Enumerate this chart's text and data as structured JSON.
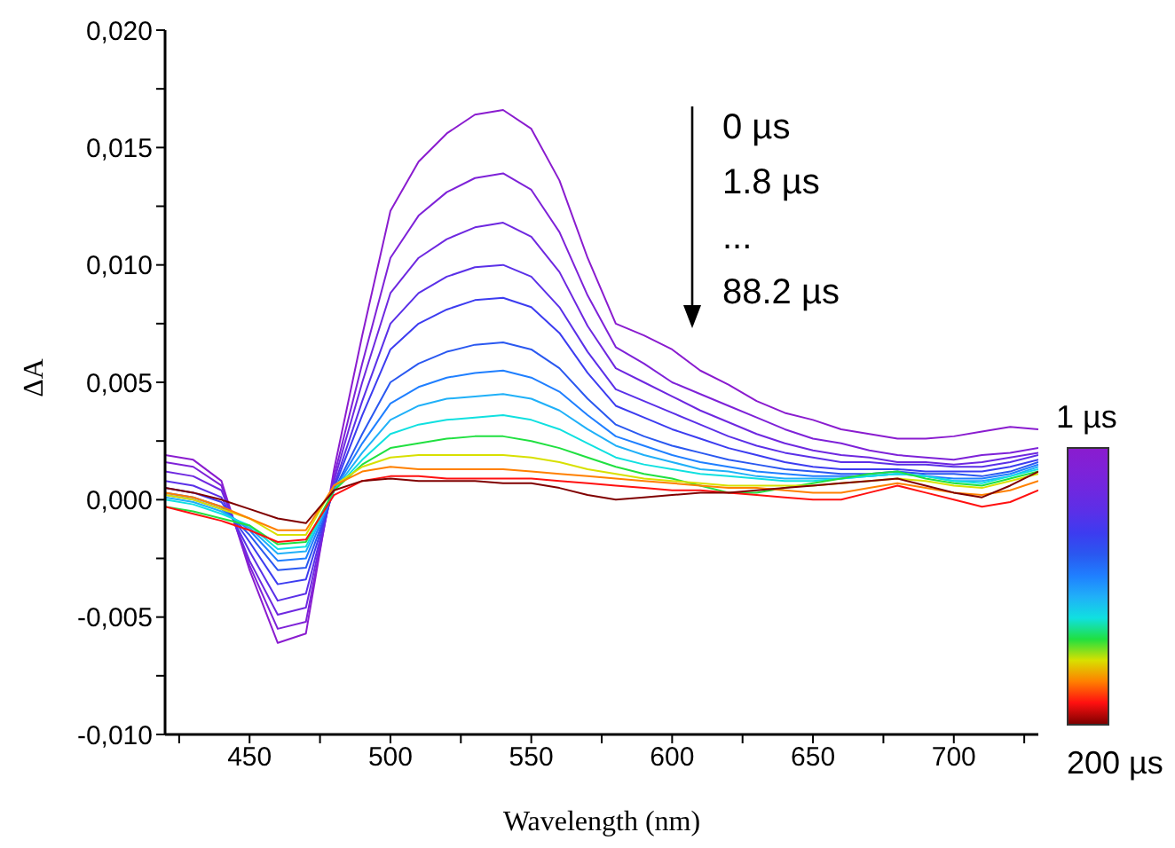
{
  "chart_data": {
    "type": "line",
    "xlabel": "Wavelength (nm)",
    "ylabel": "ΔA",
    "annotations": [
      "0 µs",
      "1.8 µs",
      "...",
      "88.2 µs",
      "1 µs",
      "200 µs"
    ],
    "x": [
      420,
      430,
      440,
      450,
      460,
      470,
      480,
      490,
      500,
      510,
      520,
      530,
      540,
      550,
      560,
      570,
      580,
      590,
      600,
      610,
      620,
      630,
      640,
      650,
      660,
      670,
      680,
      690,
      700,
      710,
      720,
      730
    ],
    "xlim": [
      420,
      730
    ],
    "xticks": [
      {
        "value": 425,
        "label": null
      },
      450,
      {
        "value": 475,
        "label": null
      },
      500,
      {
        "value": 525,
        "label": null
      },
      550,
      {
        "value": 575,
        "label": null
      },
      600,
      {
        "value": 625,
        "label": null
      },
      650,
      {
        "value": 675,
        "label": null
      },
      700,
      {
        "value": 725,
        "label": null
      }
    ],
    "ylim": [
      -0.01,
      0.02
    ],
    "yticks": [
      {
        "value": -0.01,
        "label": "-0,010"
      },
      {
        "value": -0.0075,
        "label": null
      },
      {
        "value": -0.005,
        "label": "-0,005"
      },
      {
        "value": -0.0025,
        "label": null
      },
      {
        "value": 0,
        "label": "0,000"
      },
      {
        "value": 0.0025,
        "label": null
      },
      {
        "value": 0.005,
        "label": "0,005"
      },
      {
        "value": 0.0075,
        "label": null
      },
      {
        "value": 0.01,
        "label": "0,010"
      },
      {
        "value": 0.0125,
        "label": null
      },
      {
        "value": 0.015,
        "label": "0,015"
      },
      {
        "value": 0.0175,
        "label": null
      },
      {
        "value": 0.02,
        "label": "0,020"
      }
    ],
    "series": [
      {
        "color": "#8a1ccf",
        "values": [
          0.0019,
          0.0017,
          0.0008,
          -0.003,
          -0.0061,
          -0.0057,
          0.0013,
          0.007,
          0.0123,
          0.0144,
          0.0156,
          0.0164,
          0.0166,
          0.0158,
          0.0136,
          0.0103,
          0.0075,
          0.007,
          0.0064,
          0.0055,
          0.0049,
          0.0042,
          0.0037,
          0.0034,
          0.003,
          0.0028,
          0.0026,
          0.0026,
          0.0027,
          0.0029,
          0.0031,
          0.003
        ]
      },
      {
        "color": "#7e22d8",
        "values": [
          0.0016,
          0.0014,
          0.0006,
          -0.0028,
          -0.0055,
          -0.0052,
          0.001,
          0.0058,
          0.0103,
          0.0121,
          0.0131,
          0.0137,
          0.0139,
          0.0132,
          0.0114,
          0.0087,
          0.0065,
          0.0058,
          0.005,
          0.0045,
          0.004,
          0.0035,
          0.003,
          0.0026,
          0.0024,
          0.0021,
          0.0019,
          0.0018,
          0.0017,
          0.0019,
          0.002,
          0.0022
        ]
      },
      {
        "color": "#6e28e0",
        "values": [
          0.0012,
          0.001,
          0.0004,
          -0.0026,
          -0.0049,
          -0.0046,
          0.0008,
          0.005,
          0.0088,
          0.0103,
          0.0111,
          0.0116,
          0.0118,
          0.0112,
          0.0097,
          0.0074,
          0.0056,
          0.005,
          0.0044,
          0.0038,
          0.0033,
          0.0028,
          0.0024,
          0.0021,
          0.0019,
          0.0018,
          0.0016,
          0.0016,
          0.0015,
          0.0016,
          0.0018,
          0.002
        ]
      },
      {
        "color": "#5a30e8",
        "values": [
          0.0008,
          0.0006,
          0.0001,
          -0.0022,
          -0.0043,
          -0.004,
          0.0006,
          0.0042,
          0.0075,
          0.0088,
          0.0095,
          0.0099,
          0.01,
          0.0095,
          0.0082,
          0.0063,
          0.0047,
          0.0042,
          0.0037,
          0.0032,
          0.0027,
          0.0023,
          0.002,
          0.0018,
          0.0016,
          0.0016,
          0.0015,
          0.0015,
          0.0014,
          0.0014,
          0.0016,
          0.0019
        ]
      },
      {
        "color": "#3c3cf0",
        "values": [
          0.0005,
          0.0003,
          -0.0001,
          -0.0018,
          -0.0036,
          -0.0034,
          0.0005,
          0.0036,
          0.0064,
          0.0075,
          0.0081,
          0.0085,
          0.0086,
          0.0082,
          0.0071,
          0.0054,
          0.004,
          0.0035,
          0.003,
          0.0026,
          0.0022,
          0.0019,
          0.0016,
          0.0014,
          0.0013,
          0.0013,
          0.0013,
          0.0012,
          0.0012,
          0.0012,
          0.0014,
          0.0017
        ]
      },
      {
        "color": "#2a58f0",
        "values": [
          0.0003,
          0.0001,
          -0.0003,
          -0.0015,
          -0.003,
          -0.0029,
          0.0004,
          0.0028,
          0.005,
          0.0058,
          0.0063,
          0.0066,
          0.0067,
          0.0064,
          0.0056,
          0.0043,
          0.0032,
          0.0027,
          0.0023,
          0.002,
          0.0017,
          0.0015,
          0.0013,
          0.0012,
          0.0011,
          0.0011,
          0.0012,
          0.0011,
          0.0011,
          0.001,
          0.0012,
          0.0016
        ]
      },
      {
        "color": "#1f7fff",
        "values": [
          0.0002,
          0.0,
          -0.0004,
          -0.0013,
          -0.0026,
          -0.0025,
          0.0004,
          0.0024,
          0.0041,
          0.0048,
          0.0052,
          0.0054,
          0.0055,
          0.0052,
          0.0046,
          0.0036,
          0.0027,
          0.0023,
          0.0019,
          0.0016,
          0.0014,
          0.0012,
          0.0011,
          0.001,
          0.001,
          0.001,
          0.0011,
          0.001,
          0.0009,
          0.0009,
          0.0011,
          0.0015
        ]
      },
      {
        "color": "#20b0f8",
        "values": [
          0.0001,
          -0.0001,
          -0.0005,
          -0.0012,
          -0.0023,
          -0.0022,
          0.0004,
          0.002,
          0.0034,
          0.004,
          0.0043,
          0.0044,
          0.0045,
          0.0043,
          0.0038,
          0.003,
          0.0023,
          0.0019,
          0.0016,
          0.0013,
          0.0012,
          0.001,
          0.0009,
          0.0009,
          0.0009,
          0.001,
          0.0011,
          0.001,
          0.0008,
          0.0008,
          0.001,
          0.0014
        ]
      },
      {
        "color": "#10e0e0",
        "values": [
          0.0,
          -0.0002,
          -0.0006,
          -0.0011,
          -0.0021,
          -0.002,
          0.0004,
          0.0017,
          0.0028,
          0.0032,
          0.0034,
          0.0035,
          0.0036,
          0.0034,
          0.003,
          0.0024,
          0.0018,
          0.0015,
          0.0013,
          0.0011,
          0.001,
          0.0009,
          0.0008,
          0.0008,
          0.0009,
          0.001,
          0.0011,
          0.001,
          0.0008,
          0.0007,
          0.001,
          0.0013
        ]
      },
      {
        "color": "#20e040",
        "values": [
          -0.0003,
          -0.0005,
          -0.0008,
          -0.0011,
          -0.0019,
          -0.0018,
          0.0004,
          0.0015,
          0.0022,
          0.0024,
          0.0026,
          0.0027,
          0.0027,
          0.0025,
          0.0022,
          0.0018,
          0.0014,
          0.0011,
          0.0009,
          0.0006,
          0.0003,
          0.0003,
          0.0005,
          0.0007,
          0.0009,
          0.0011,
          0.0012,
          0.0009,
          0.0007,
          0.0006,
          0.0009,
          0.0012
        ]
      },
      {
        "color": "#d8e000",
        "values": [
          0.0002,
          0.0,
          -0.0004,
          -0.0008,
          -0.0015,
          -0.0015,
          0.0006,
          0.0014,
          0.0018,
          0.0019,
          0.0019,
          0.0019,
          0.0019,
          0.0018,
          0.0016,
          0.0013,
          0.0011,
          0.0009,
          0.0008,
          0.0007,
          0.0006,
          0.0006,
          0.0006,
          0.0006,
          0.0007,
          0.0008,
          0.0009,
          0.0008,
          0.0006,
          0.0005,
          0.0008,
          0.0011
        ]
      },
      {
        "color": "#ff8000",
        "values": [
          0.0003,
          0.0001,
          -0.0003,
          -0.0008,
          -0.0013,
          -0.0013,
          0.0006,
          0.0012,
          0.0014,
          0.0013,
          0.0013,
          0.0013,
          0.0013,
          0.0012,
          0.0011,
          0.001,
          0.0009,
          0.0008,
          0.0007,
          0.0006,
          0.0005,
          0.0005,
          0.0004,
          0.0003,
          0.0003,
          0.0005,
          0.0007,
          0.0005,
          0.0003,
          0.0002,
          0.0004,
          0.0008
        ]
      },
      {
        "color": "#ff1010",
        "values": [
          -0.0003,
          -0.0006,
          -0.0009,
          -0.0013,
          -0.0018,
          -0.0017,
          0.0002,
          0.0008,
          0.001,
          0.001,
          0.0009,
          0.0009,
          0.0009,
          0.0009,
          0.0008,
          0.0007,
          0.0006,
          0.0005,
          0.0004,
          0.0004,
          0.0003,
          0.0002,
          0.0001,
          0.0,
          0.0,
          0.0003,
          0.0006,
          0.0003,
          0.0,
          -0.0003,
          -0.0001,
          0.0004
        ]
      },
      {
        "color": "#800000",
        "values": [
          0.0005,
          0.0003,
          0.0,
          -0.0004,
          -0.0008,
          -0.001,
          0.0004,
          0.0008,
          0.0009,
          0.0008,
          0.0008,
          0.0008,
          0.0007,
          0.0007,
          0.0005,
          0.0002,
          0.0,
          0.0001,
          0.0002,
          0.0003,
          0.0003,
          0.0004,
          0.0005,
          0.0006,
          0.0007,
          0.0008,
          0.0009,
          0.0006,
          0.0003,
          0.0001,
          0.0006,
          0.0012
        ]
      }
    ]
  }
}
